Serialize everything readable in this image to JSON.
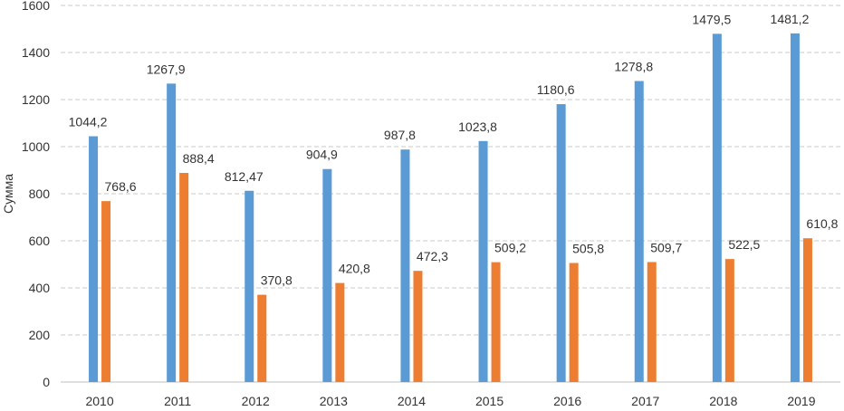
{
  "chart_data": {
    "type": "bar",
    "title": "",
    "xlabel": "",
    "ylabel": "Сумма",
    "ylim": [
      0,
      1600
    ],
    "yticks": [
      "0",
      "200",
      "400",
      "600",
      "800",
      "1000",
      "1200",
      "1400",
      "1600"
    ],
    "ytick_values": [
      0,
      200,
      400,
      600,
      800,
      1000,
      1200,
      1400,
      1600
    ],
    "grid": true,
    "categories": [
      "2010",
      "2011",
      "2012",
      "2013",
      "2014",
      "2015",
      "2016",
      "2017",
      "2018",
      "2019"
    ],
    "series": [
      {
        "name": "series-1",
        "color": "#5B9BD5",
        "values": [
          1044.2,
          1267.9,
          812.47,
          904.9,
          987.8,
          1023.8,
          1180.6,
          1278.8,
          1479.5,
          1481.2
        ],
        "labels": [
          "1044,2",
          "1267,9",
          "812,47",
          "904,9",
          "987,8",
          "1023,8",
          "1180,6",
          "1278,8",
          "1479,5",
          "1481,2"
        ]
      },
      {
        "name": "series-2",
        "color": "#ED7D31",
        "values": [
          768.6,
          888.4,
          370.8,
          420.8,
          472.3,
          509.2,
          505.8,
          509.7,
          522.5,
          610.8
        ],
        "labels": [
          "768,6",
          "888,4",
          "370,8",
          "420,8",
          "472,3",
          "509,2",
          "505,8",
          "509,7",
          "522,5",
          "610,8"
        ]
      }
    ]
  }
}
